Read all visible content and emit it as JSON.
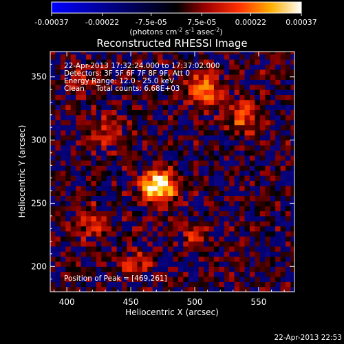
{
  "chart_data": {
    "type": "heatmap",
    "title": "Reconstructed RHESSI Image",
    "xlabel": "Heliocentric X (arcsec)",
    "ylabel": "Heliocentric Y (arcsec)",
    "xlim": [
      387,
      578
    ],
    "ylim": [
      180,
      370
    ],
    "x_ticks": [
      "400",
      "450",
      "500",
      "550"
    ],
    "x_tick_values": [
      400,
      450,
      500,
      550
    ],
    "y_ticks": [
      "200",
      "250",
      "300",
      "350"
    ],
    "y_tick_values": [
      200,
      250,
      300,
      350
    ],
    "colorbar": {
      "range": [
        -0.00037,
        0.00037
      ],
      "tick_labels": [
        "-0.00037",
        "-0.00022",
        "-7.5e-05",
        "7.5e-05",
        "0.00022",
        "0.00037"
      ],
      "tick_values": [
        -0.00037,
        -0.00022,
        -7.5e-05,
        7.5e-05,
        0.00022,
        0.00037
      ],
      "unit_parts": [
        "(photons cm",
        "-2",
        " s",
        "-1",
        " asec",
        "-2",
        ")"
      ],
      "colors": [
        "#0000ff",
        "#000000",
        "#ff0000",
        "#ffff00",
        "#ffffff"
      ]
    },
    "sources": [
      {
        "x": 469,
        "y": 261,
        "peak": 0.00037
      },
      {
        "x": 505,
        "y": 338,
        "peak": 0.00026
      },
      {
        "x": 536,
        "y": 317,
        "peak": 0.00018
      },
      {
        "x": 430,
        "y": 305,
        "peak": 0.00013
      },
      {
        "x": 418,
        "y": 232,
        "peak": 0.00014
      },
      {
        "x": 452,
        "y": 200,
        "peak": 0.00012
      },
      {
        "x": 498,
        "y": 222,
        "peak": 0.0001
      },
      {
        "x": 412,
        "y": 345,
        "peak": 0.00011
      }
    ],
    "annotations": {
      "time_range": "22-Apr-2013 17:32:24.000 to 17:37:02.000",
      "detectors": "Detectors: 3F 5F 6F 7F 8F 9F, Att 0",
      "energy": "Energy Range: 12.0 - 25.0 keV",
      "clean": "Clean     Total counts: 6.68E+03",
      "peak": "Position of Peak = [469,261]"
    },
    "timestamp": "22-Apr-2013 22:53"
  }
}
